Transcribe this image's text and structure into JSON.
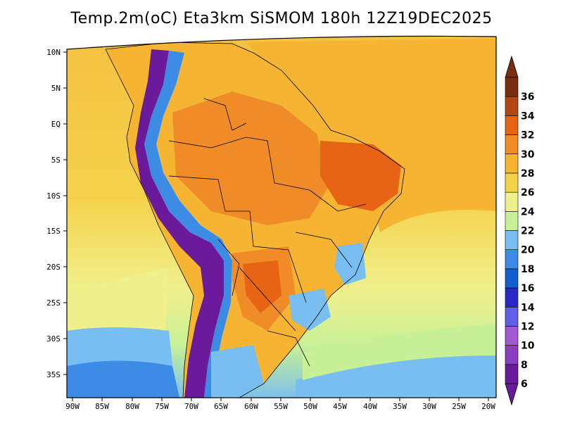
{
  "title": "Temp.2m(oC) Eta3km SiSMOM 180h 12Z19DEC2025",
  "map": {
    "variable": "Temp.2m",
    "units": "oC",
    "model": "Eta3km SiSMOM",
    "forecast_hour": "180h",
    "valid_time": "12Z19DEC2025",
    "lat_labels": [
      "10N",
      "5N",
      "EQ",
      "5S",
      "10S",
      "15S",
      "20S",
      "25S",
      "30S",
      "35S"
    ],
    "lon_labels": [
      "90W",
      "85W",
      "80W",
      "75W",
      "70W",
      "65W",
      "60W",
      "55W",
      "50W",
      "45W",
      "40W",
      "35W",
      "30W",
      "25W",
      "20W"
    ]
  },
  "colorbar": {
    "levels": [
      "6",
      "8",
      "10",
      "12",
      "14",
      "16",
      "18",
      "20",
      "22",
      "24",
      "26",
      "28",
      "30",
      "32",
      "34",
      "36"
    ],
    "colors": [
      "#6a1a9a",
      "#8c3cc0",
      "#a05ad2",
      "#6060e6",
      "#2828c8",
      "#1060d0",
      "#3c8ce6",
      "#78bef0",
      "#c8f096",
      "#f0f08c",
      "#f5d24b",
      "#f5b432",
      "#f08c28",
      "#e66414",
      "#b44614",
      "#7a2d10"
    ]
  },
  "colors": {
    "ocean_tropical": "#f5b432",
    "ocean_subtropical": "#f5d24b",
    "ocean_south": "#f0f08c",
    "andes": "#6a1a9a",
    "amazon": "#f08c28",
    "hot_core": "#e66414"
  }
}
